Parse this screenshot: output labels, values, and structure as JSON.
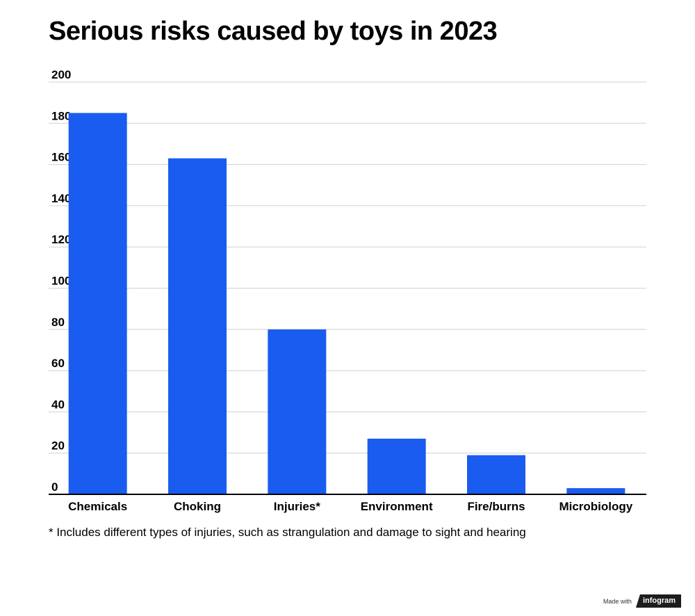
{
  "title": "Serious risks caused by toys in 2023",
  "footnote": "* Includes different types of injuries, such as strangulation and damage to sight and hearing",
  "credit": {
    "made_with": "Made with",
    "brand": "infogram"
  },
  "colors": {
    "bar": "#1a5cf0",
    "grid": "#d0d0d0",
    "axis": "#000000",
    "text": "#000000"
  },
  "chart_data": {
    "type": "bar",
    "title": "Serious risks caused by toys in 2023",
    "categories": [
      "Chemicals",
      "Choking",
      "Injuries*",
      "Environment",
      "Fire/burns",
      "Microbiology"
    ],
    "values": [
      185,
      163,
      80,
      27,
      19,
      3
    ],
    "ylim": [
      0,
      200
    ],
    "yticks": [
      0,
      20,
      40,
      60,
      80,
      100,
      120,
      140,
      160,
      180,
      200
    ],
    "xlabel": "",
    "ylabel": "",
    "grid": true,
    "legend": "none"
  }
}
